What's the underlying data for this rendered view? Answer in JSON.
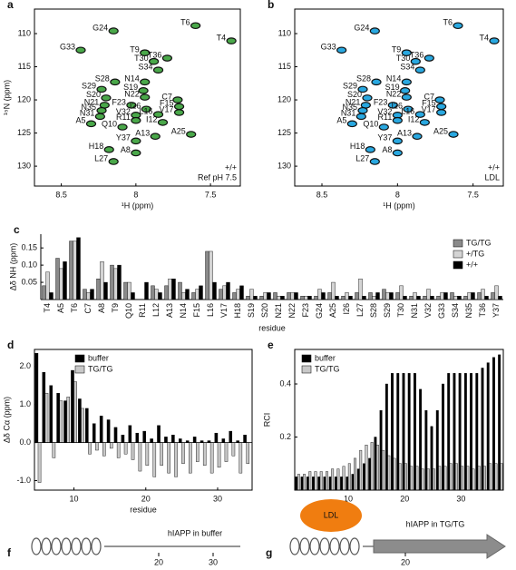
{
  "chart_data": [
    {
      "type": "scatter",
      "panel": "a",
      "xlabel": "¹H (ppm)",
      "ylabel": "¹⁵N (ppm)",
      "xlim": [
        7.3,
        8.68
      ],
      "xreverse": true,
      "ylim": [
        106.3,
        133
      ],
      "yreverse": true,
      "xticks": [
        8.5,
        8,
        7.5
      ],
      "yticks": [
        110,
        115,
        120,
        125,
        130
      ],
      "legend": "lower-right",
      "series": [
        {
          "name": "+/+",
          "color": "#111111"
        },
        {
          "name": "Ref pH 7.5",
          "color": "#4aa84a"
        }
      ],
      "labels": [
        "G24",
        "T6",
        "T4",
        "G33",
        "T9",
        "T30",
        "T36",
        "S34",
        "S28",
        "N14",
        "S29",
        "S19",
        "C7",
        "S20",
        "N22",
        "F15",
        "N21",
        "F23",
        "I26",
        "V17",
        "N35",
        "L16",
        "N31",
        "V32",
        "A5",
        "R11",
        "I12",
        "A25",
        "Q10",
        "A13",
        "Y37",
        "H18",
        "A8",
        "L27"
      ],
      "x": [
        8.15,
        7.6,
        7.36,
        8.37,
        7.94,
        7.88,
        7.79,
        7.85,
        8.14,
        7.94,
        8.23,
        7.95,
        7.72,
        8.2,
        7.94,
        7.71,
        8.21,
        8.03,
        7.93,
        7.71,
        8.23,
        7.85,
        8.24,
        8.0,
        8.3,
        8.0,
        7.82,
        7.63,
        8.09,
        7.87,
        8.0,
        8.18,
        8.0,
        8.15
      ],
      "y": [
        109.6,
        108.8,
        111.1,
        112.5,
        112.9,
        114.2,
        113.7,
        115.5,
        117.3,
        117.3,
        118.4,
        118.6,
        120,
        119.7,
        119.6,
        121,
        120.8,
        120.8,
        121.4,
        121.9,
        121.6,
        122.2,
        122.5,
        122.3,
        123.6,
        123.1,
        123.4,
        125.2,
        124.1,
        125.5,
        126.2,
        127.5,
        128,
        129.3
      ]
    },
    {
      "type": "scatter",
      "panel": "b",
      "xlabel": "¹H (ppm)",
      "xlim": [
        7.3,
        8.68
      ],
      "xreverse": true,
      "ylim": [
        106.3,
        133
      ],
      "yreverse": true,
      "xticks": [
        8.5,
        8,
        7.5
      ],
      "yticks": [
        110,
        115,
        120,
        125,
        130
      ],
      "legend": "lower-right",
      "series": [
        {
          "name": "+/+",
          "color": "#111111"
        },
        {
          "name": "LDL",
          "color": "#29a8e0"
        }
      ],
      "labels": [
        "G24",
        "T6",
        "T4",
        "G33",
        "T9",
        "T30",
        "T36",
        "S34",
        "S28",
        "N14",
        "S29",
        "S19",
        "C7",
        "S20",
        "N22",
        "F15",
        "N21",
        "F23",
        "I26",
        "V17",
        "N35",
        "L16",
        "N31",
        "V32",
        "A5",
        "R11",
        "I12",
        "A25",
        "Q10",
        "A13",
        "Y37",
        "H18",
        "A8",
        "L27"
      ],
      "x": [
        8.15,
        7.6,
        7.36,
        8.37,
        7.94,
        7.88,
        7.79,
        7.85,
        8.14,
        7.94,
        8.23,
        7.95,
        7.72,
        8.2,
        7.94,
        7.71,
        8.21,
        8.03,
        7.93,
        7.71,
        8.23,
        7.85,
        8.24,
        8.0,
        8.3,
        8.0,
        7.82,
        7.63,
        8.09,
        7.87,
        8.0,
        8.18,
        8.0,
        8.15
      ],
      "y": [
        109.6,
        108.8,
        111.1,
        112.5,
        112.9,
        114.2,
        113.7,
        115.5,
        117.3,
        117.3,
        118.4,
        118.6,
        120,
        119.7,
        119.6,
        121,
        120.8,
        120.8,
        121.4,
        121.9,
        121.6,
        122.2,
        122.5,
        122.3,
        123.6,
        123.1,
        123.4,
        125.2,
        124.1,
        125.5,
        126.2,
        127.5,
        128,
        129.3
      ]
    },
    {
      "type": "bar",
      "panel": "c",
      "xlabel": "residue",
      "ylabel": "Δδ NH (ppm)",
      "ylim": [
        0,
        0.19
      ],
      "yticks": [
        0.05,
        {
          "value": 0.1,
          "label": "0.10"
        },
        0.15
      ],
      "legend": "upper-right",
      "categories": [
        "T4",
        "A5",
        "T6",
        "C7",
        "A8",
        "T9",
        "Q10",
        "R11",
        "L12",
        "A13",
        "N14",
        "F15",
        "L16",
        "V17",
        "H18",
        "S19",
        "S20",
        "N21",
        "N22",
        "F23",
        "G24",
        "A25",
        "I26",
        "L27",
        "S28",
        "S29",
        "T30",
        "N31",
        "V32",
        "G33",
        "S34",
        "N35",
        "T36",
        "Y37"
      ],
      "series": [
        {
          "name": "TG/TG",
          "color": "#8a8a8a",
          "values": [
            0.04,
            0.12,
            0.17,
            0.03,
            0.06,
            0.1,
            0.05,
            0,
            0.04,
            0.04,
            0.05,
            0.02,
            0.14,
            0.03,
            0.02,
            0.01,
            0.01,
            0.02,
            0.02,
            0.01,
            0.01,
            0.02,
            0.01,
            0.02,
            0.02,
            0.03,
            0.02,
            0.01,
            0.01,
            0.01,
            0.02,
            0.01,
            0.02,
            0.02
          ]
        },
        {
          "name": "+/TG",
          "color": "#d4d4d4",
          "values": [
            0.08,
            0.09,
            0.17,
            0.02,
            0.11,
            0.09,
            0.05,
            0,
            0.03,
            0.06,
            0.02,
            0.03,
            0.14,
            0.04,
            0.03,
            0.03,
            0.02,
            0.01,
            0.02,
            0.01,
            0.03,
            0.05,
            0.02,
            0.06,
            0.01,
            0.02,
            0.04,
            0.02,
            0.03,
            0.02,
            0.01,
            0.02,
            0.03,
            0.04
          ]
        },
        {
          "name": "+/+",
          "color": "#000000",
          "values": [
            0.02,
            0.11,
            0.18,
            0.03,
            0.05,
            0.1,
            0.02,
            0.05,
            0.02,
            0.06,
            0.03,
            0.04,
            0.05,
            0.05,
            0.04,
            0.01,
            0.02,
            0.01,
            0.02,
            0.01,
            0.02,
            0.01,
            0.01,
            0.01,
            0.02,
            0.02,
            0.01,
            0.01,
            0.01,
            0.02,
            0.01,
            0.02,
            0.01,
            0.01
          ]
        }
      ]
    },
    {
      "type": "bar",
      "panel": "d",
      "xlabel": "residue",
      "ylabel": "Δδ Cα (ppm)",
      "xlim": [
        4.5,
        34.8
      ],
      "ylim": [
        -1.25,
        2.45
      ],
      "xticks": [
        10,
        20,
        30
      ],
      "yticks": [
        {
          "value": -1,
          "label": "-1.0"
        },
        {
          "value": 0,
          "label": "0.0"
        },
        {
          "value": 1,
          "label": "1.0"
        },
        {
          "value": 2,
          "label": "2.0"
        }
      ],
      "legend": "upper-center",
      "x": [
        5,
        6,
        7,
        8,
        9,
        10,
        11,
        12,
        13,
        14,
        15,
        16,
        17,
        18,
        19,
        20,
        21,
        22,
        23,
        24,
        25,
        26,
        27,
        28,
        29,
        30,
        31,
        32,
        33,
        34
      ],
      "series": [
        {
          "name": "buffer",
          "color": "#000000",
          "values": [
            2.35,
            1.85,
            1.5,
            1.3,
            1.1,
            1.9,
            1.15,
            0.9,
            0.5,
            0.7,
            0.6,
            0.4,
            0.2,
            0.45,
            0.25,
            0.3,
            0.1,
            0.45,
            0.15,
            0.2,
            0.1,
            0.05,
            0.15,
            0.05,
            0.05,
            0.25,
            0.1,
            0.3,
            0.05,
            0.2
          ]
        },
        {
          "name": "TG/TG",
          "color": "#c8c8c8",
          "values": [
            -1.05,
            1.3,
            -0.4,
            1.1,
            1.2,
            1.6,
            0.9,
            -0.3,
            -0.2,
            -0.35,
            -0.15,
            -0.4,
            -0.3,
            -0.45,
            -0.75,
            -0.6,
            -0.9,
            -0.6,
            -0.8,
            -0.9,
            -0.55,
            -0.8,
            -0.5,
            -0.6,
            -0.8,
            -0.65,
            -0.5,
            -0.35,
            -0.8,
            -0.55
          ]
        }
      ]
    },
    {
      "type": "bar",
      "panel": "e",
      "ylabel": "RCI",
      "xlim": [
        0.5,
        37.5
      ],
      "ylim": [
        0,
        0.53
      ],
      "xticks": [
        10,
        20,
        30
      ],
      "yticks": [
        0.2,
        0.4
      ],
      "legend": "upper-left",
      "x": [
        1,
        2,
        3,
        4,
        5,
        6,
        7,
        8,
        9,
        10,
        11,
        12,
        13,
        14,
        15,
        16,
        17,
        18,
        19,
        20,
        21,
        22,
        23,
        24,
        25,
        26,
        27,
        28,
        29,
        30,
        31,
        32,
        33,
        34,
        35,
        36,
        37
      ],
      "series": [
        {
          "name": "buffer",
          "color": "#000000",
          "values": [
            0.05,
            0.05,
            0.05,
            0.05,
            0.05,
            0.05,
            0.05,
            0.05,
            0.05,
            0.05,
            0.06,
            0.08,
            0.1,
            0.12,
            0.2,
            0.3,
            0.4,
            0.44,
            0.44,
            0.44,
            0.44,
            0.44,
            0.38,
            0.3,
            0.24,
            0.3,
            0.4,
            0.44,
            0.44,
            0.44,
            0.44,
            0.44,
            0.44,
            0.46,
            0.48,
            0.5,
            0.51
          ]
        },
        {
          "name": "TG/TG",
          "color": "#c8c8c8",
          "values": [
            0.06,
            0.06,
            0.07,
            0.07,
            0.07,
            0.07,
            0.08,
            0.08,
            0.09,
            0.1,
            0.12,
            0.15,
            0.17,
            0.18,
            0.17,
            0.15,
            0.13,
            0.12,
            0.1,
            0.1,
            0.09,
            0.09,
            0.08,
            0.08,
            0.08,
            0.09,
            0.09,
            0.1,
            0.1,
            0.09,
            0.09,
            0.08,
            0.09,
            0.09,
            0.1,
            0.1,
            0.1
          ]
        }
      ]
    }
  ],
  "diagrams": [
    {
      "panel": "f",
      "label": "hIAPP in buffer",
      "ticks": [
        20,
        30
      ]
    },
    {
      "panel": "g",
      "binder": "LDL",
      "label": "hIAPP in TG/TG",
      "ticks": [
        20
      ]
    }
  ]
}
